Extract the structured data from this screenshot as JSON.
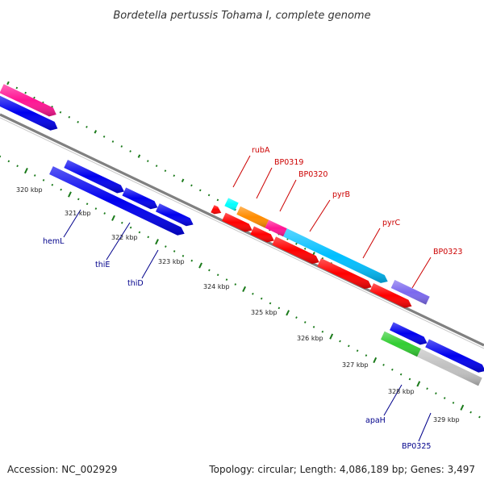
{
  "title": "Bordetella pertussis Tohama I, complete genome",
  "footer": {
    "accession": "Accession: NC_002929",
    "summary": "Topology: circular; Length: 4,086,189 bp; Genes: 3,497"
  },
  "colors": {
    "backbone": "#808080",
    "tick": "#1a7a1a",
    "forward_label": "#cc0000",
    "reverse_label": "#00008b"
  },
  "kbp_labels": [
    "320 kbp",
    "321 kbp",
    "322 kbp",
    "323 kbp",
    "324 kbp",
    "325 kbp",
    "326 kbp",
    "327 kbp",
    "328 kbp",
    "329 kbp"
  ],
  "gene_labels": {
    "forward": [
      "rubA",
      "BP0319",
      "BP0320",
      "pyrB",
      "pyrC",
      "BP0323"
    ],
    "reverse": [
      "hemL",
      "thiE",
      "thiD",
      "apaH",
      "BP0325"
    ]
  },
  "features": [
    {
      "track": "cds_f",
      "color": "#0000ee",
      "shape": "arrow"
    },
    {
      "track": "cds_f",
      "color": "#ff1493",
      "shape": "arrow"
    },
    {
      "track": "cds_f",
      "color": "#00ffff",
      "shape": "box"
    },
    {
      "track": "cds_f",
      "color": "#ff0000",
      "shape": "arrow"
    },
    {
      "track": "cds_f",
      "color": "#ff8c00",
      "shape": "box"
    },
    {
      "track": "cds_f",
      "color": "#ff1493",
      "shape": "box"
    },
    {
      "track": "cds_f",
      "color": "#00bfff",
      "shape": "arrow"
    },
    {
      "track": "cds_f",
      "color": "#7b68ee",
      "shape": "box"
    },
    {
      "track": "cds_r",
      "color": "#0000ee",
      "shape": "arrow"
    },
    {
      "track": "cds_r",
      "color": "#ff0000",
      "shape": "arrow"
    },
    {
      "track": "cds_r",
      "color": "#32cd32",
      "shape": "box"
    },
    {
      "track": "cds_r",
      "color": "#c0c0c0",
      "shape": "box"
    }
  ]
}
